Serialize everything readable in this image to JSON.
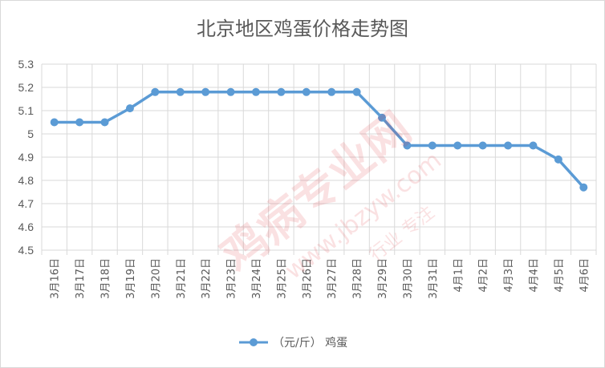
{
  "chart_data": {
    "type": "line",
    "title": "北京地区鸡蛋价格走势图",
    "xlabel": "",
    "ylabel": "",
    "ylim": [
      4.5,
      5.3
    ],
    "yticks": [
      "5.3",
      "5.2",
      "5.1",
      "5",
      "4.9",
      "4.8",
      "4.7",
      "4.6",
      "4.5"
    ],
    "categories": [
      "3月16日",
      "3月17日",
      "3月18日",
      "3月19日",
      "3月20日",
      "3月21日",
      "3月22日",
      "3月23日",
      "3月24日",
      "3月25日",
      "3月26日",
      "3月27日",
      "3月28日",
      "3月29日",
      "3月30日",
      "3月31日",
      "4月1日",
      "4月2日",
      "4月3日",
      "4月4日",
      "4月5日",
      "4月6日"
    ],
    "series": [
      {
        "name": "（元/斤） 鸡蛋",
        "color": "#5b9bd5",
        "values": [
          5.05,
          5.05,
          5.05,
          5.11,
          5.18,
          5.18,
          5.18,
          5.18,
          5.18,
          5.18,
          5.18,
          5.18,
          5.18,
          5.07,
          4.95,
          4.95,
          4.95,
          4.95,
          4.95,
          4.95,
          4.89,
          4.77
        ]
      }
    ],
    "grid": true,
    "legend": "bottom"
  },
  "watermark": {
    "brand": "鸡病专业网",
    "url": "www.jbzyw.com",
    "slogan": "行业 专注"
  }
}
